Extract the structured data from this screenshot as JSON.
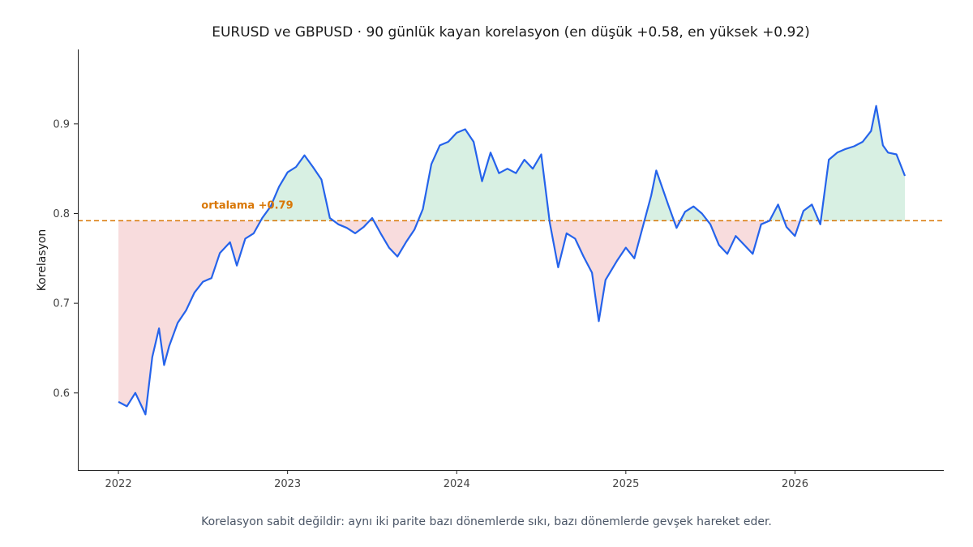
{
  "chart_data": {
    "type": "line",
    "title": "EURUSD ve GBPUSD · 90 günlük kayan korelasyon (en düşük +0.58, en yüksek +0.92)",
    "xlabel": "",
    "ylabel": "Korelasyon",
    "xlim": [
      2021.76,
      2026.88
    ],
    "ylim": [
      0.514,
      0.983
    ],
    "x_ticks": [
      "2022",
      "2023",
      "2024",
      "2025",
      "2026"
    ],
    "y_ticks": [
      "0.6",
      "0.7",
      "0.8",
      "0.9"
    ],
    "mean": 0.792,
    "mean_label": "ortalama +0.79",
    "fill_above_color": "#d8f0e3",
    "fill_below_color": "#f8dcdd",
    "line_color": "#2563eb",
    "mean_line_color": "#d97706",
    "grid": false,
    "series": [
      {
        "x": [
          2022.0,
          2022.05,
          2022.1,
          2022.13,
          2022.16,
          2022.2,
          2022.24,
          2022.27,
          2022.3,
          2022.35,
          2022.4,
          2022.45,
          2022.5,
          2022.55,
          2022.6,
          2022.66,
          2022.7,
          2022.75,
          2022.8,
          2022.85,
          2022.9,
          2022.95,
          2023.0,
          2023.05,
          2023.1,
          2023.15,
          2023.2,
          2023.25,
          2023.3,
          2023.35,
          2023.4,
          2023.45,
          2023.5,
          2023.55,
          2023.6,
          2023.65,
          2023.7,
          2023.75,
          2023.8,
          2023.85,
          2023.9,
          2023.95,
          2024.0,
          2024.05,
          2024.1,
          2024.15,
          2024.2,
          2024.25,
          2024.3,
          2024.35,
          2024.4,
          2024.45,
          2024.5,
          2024.55,
          2024.6,
          2024.65,
          2024.7,
          2024.75,
          2024.8,
          2024.84,
          2024.88,
          2024.95,
          2025.0,
          2025.05,
          2025.1,
          2025.15,
          2025.18,
          2025.25,
          2025.3,
          2025.35,
          2025.4,
          2025.45,
          2025.5,
          2025.55,
          2025.6,
          2025.65,
          2025.7,
          2025.75,
          2025.8,
          2025.85,
          2025.9,
          2025.95,
          2026.0,
          2026.05,
          2026.1,
          2026.15,
          2026.2,
          2026.25,
          2026.3,
          2026.35,
          2026.4,
          2026.45,
          2026.48,
          2026.52,
          2026.55,
          2026.6,
          2026.65
        ],
        "values": [
          0.59,
          0.585,
          0.6,
          0.588,
          0.576,
          0.64,
          0.672,
          0.631,
          0.652,
          0.678,
          0.692,
          0.712,
          0.724,
          0.728,
          0.756,
          0.768,
          0.742,
          0.772,
          0.778,
          0.795,
          0.808,
          0.83,
          0.846,
          0.852,
          0.865,
          0.852,
          0.838,
          0.795,
          0.788,
          0.784,
          0.778,
          0.785,
          0.795,
          0.778,
          0.762,
          0.752,
          0.768,
          0.782,
          0.805,
          0.855,
          0.876,
          0.88,
          0.89,
          0.894,
          0.88,
          0.836,
          0.868,
          0.845,
          0.85,
          0.845,
          0.86,
          0.85,
          0.866,
          0.79,
          0.74,
          0.778,
          0.772,
          0.752,
          0.734,
          0.68,
          0.726,
          0.748,
          0.762,
          0.75,
          0.785,
          0.82,
          0.848,
          0.81,
          0.784,
          0.802,
          0.808,
          0.8,
          0.788,
          0.765,
          0.755,
          0.775,
          0.765,
          0.755,
          0.788,
          0.792,
          0.81,
          0.785,
          0.775,
          0.803,
          0.81,
          0.788,
          0.86,
          0.868,
          0.872,
          0.875,
          0.88,
          0.892,
          0.92,
          0.876,
          0.868,
          0.866,
          0.842
        ]
      }
    ]
  },
  "caption": "Korelasyon sabit değildir: aynı iki parite bazı dönemlerde sıkı, bazı dönemlerde gevşek hareket eder."
}
